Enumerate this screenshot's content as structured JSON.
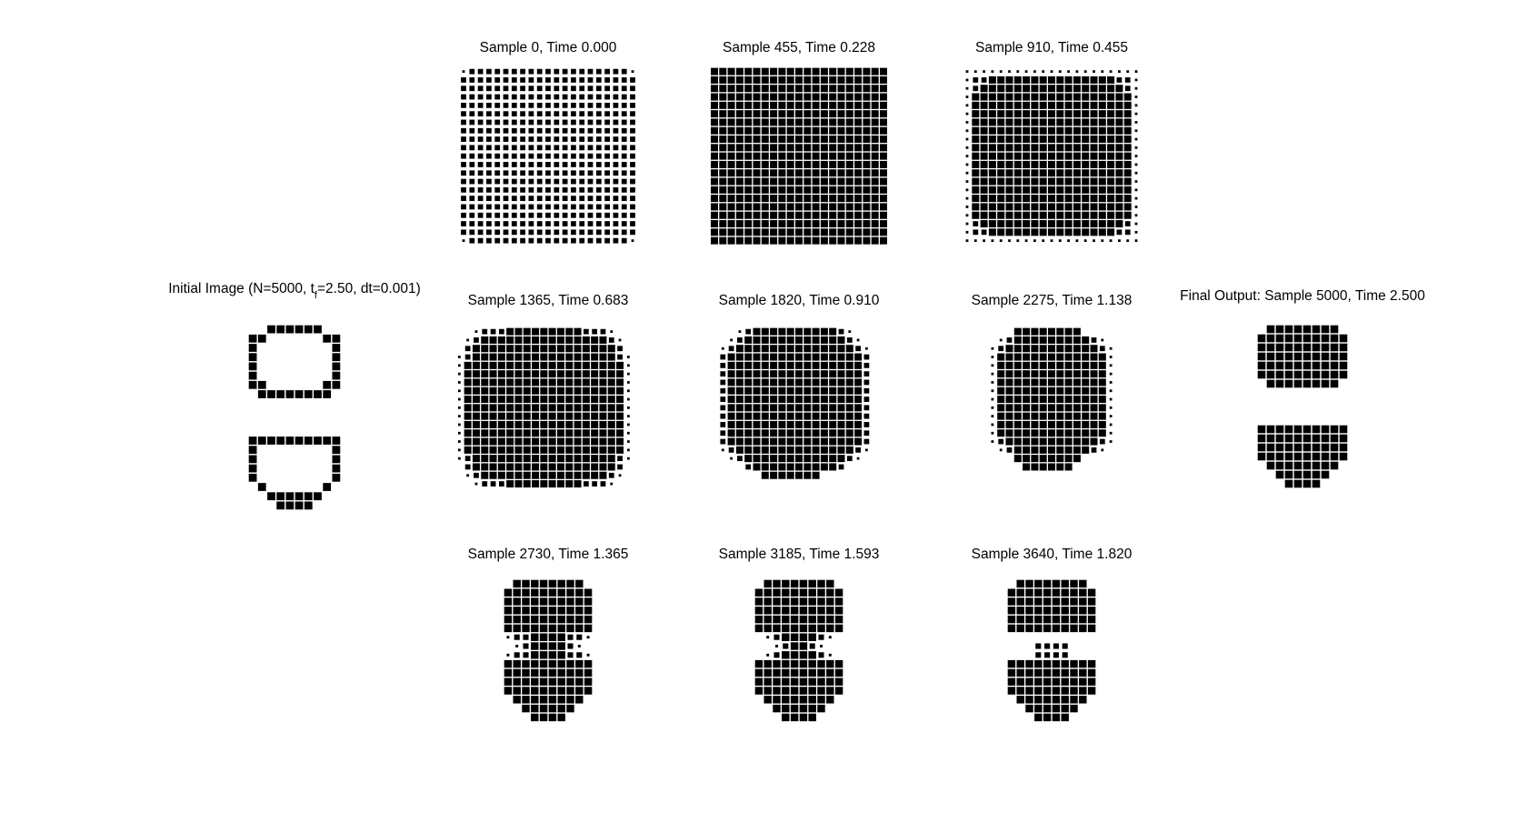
{
  "chart_data": {
    "type": "heatmap",
    "figure_background": "#ffffff",
    "mark_color": "#000000",
    "panels": [
      {
        "id": "p0",
        "title": "Sample 0, Time 0.000",
        "rows": [
          "122222222222222222221",
          "222222222222222222222",
          "222222222222222222222",
          "222222222222222222222",
          "222222222222222222222",
          "222222222222222222222",
          "222222222222222222222",
          "222222222222222222222",
          "222222222222222222222",
          "222222222222222222222",
          "222222222222222222222",
          "222222222222222222222",
          "222222222222222222222",
          "222222222222222222222",
          "222222222222222222222",
          "222222222222222222222",
          "222222222222222222222",
          "222222222222222222222",
          "222222222222222222222",
          "222222222222222222222",
          "122222222222222222221"
        ]
      },
      {
        "id": "p1",
        "title": "Sample 455, Time 0.228",
        "rows": [
          "333333333333333333333",
          "333333333333333333333",
          "333333333333333333333",
          "333333333333333333333",
          "333333333333333333333",
          "333333333333333333333",
          "333333333333333333333",
          "333333333333333333333",
          "333333333333333333333",
          "333333333333333333333",
          "333333333333333333333",
          "333333333333333333333",
          "333333333333333333333",
          "333333333333333333333",
          "333333333333333333333",
          "333333333333333333333",
          "333333333333333333333",
          "333333333333333333333",
          "333333333333333333333",
          "333333333333333333333",
          "333333333333333333333"
        ]
      },
      {
        "id": "p2",
        "title": "Sample 910, Time 0.455",
        "rows": [
          "111111111111111111111",
          "122333333333333333221",
          "123333333333333333321",
          "133333333333333333331",
          "133333333333333333331",
          "133333333333333333331",
          "133333333333333333331",
          "133333333333333333331",
          "133333333333333333331",
          "133333333333333333331",
          "133333333333333333331",
          "133333333333333333331",
          "133333333333333333331",
          "133333333333333333331",
          "133333333333333333331",
          "133333333333333333331",
          "133333333333333333331",
          "133333333333333333331",
          "123333333333333333321",
          "122333333333333333221",
          "111111111111111111111"
        ]
      },
      {
        "id": "p3",
        "title": "Sample 1365, Time 0.683",
        "rows": [
          "0012223333333332221000",
          "0123333333333333332100",
          "0233333333333333333200",
          "1233333333333333333210",
          "1333333333333333333310",
          "1333333333333333333310",
          "1333333333333333333310",
          "1333333333333333333310",
          "1333333333333333333310",
          "1333333333333333333310",
          "1333333333333333333310",
          "1333333333333333333310",
          "1333333333333333333310",
          "1333333333333333333310",
          "1333333333333333333310",
          "1233333333333333333210",
          "0233333333333333333200",
          "0123333333333333332100",
          "0012223333333332221000"
        ]
      },
      {
        "id": "p4",
        "title": "Sample 1820, Time 0.910",
        "rows": [
          "0012333333333321000",
          "0123333333333332100",
          "1233333333333333210",
          "2333333333333333320",
          "2333333333333333320",
          "2333333333333333320",
          "2333333333333333320",
          "2333333333333333320",
          "2333333333333333320",
          "2333333333333333320",
          "2333333333333333320",
          "2333333333333333320",
          "2333333333333333320",
          "2333333333333333320",
          "1233333333333333210",
          "0123333333333332100",
          "0002333333333320000",
          "0000033333330000000"
        ]
      },
      {
        "id": "p5",
        "title": "Sample 2275, Time 1.138",
        "rows": [
          "000333333330000",
          "012333333333210",
          "123333333333321",
          "133333333333331",
          "133333333333331",
          "133333333333331",
          "133333333333331",
          "133333333333331",
          "133333333333331",
          "133333333333331",
          "133333333333331",
          "133333333333331",
          "133333333333331",
          "123333333333321",
          "012333333333210",
          "000333333330000",
          "000033333300000"
        ]
      },
      {
        "id": "p6",
        "title": "Sample 2730, Time 1.365",
        "rows": [
          "0333333330",
          "3333333333",
          "3333333333",
          "3333333333",
          "3333333333",
          "3333333333",
          "1223333221",
          "0123333210",
          "1223333221",
          "3333333333",
          "3333333333",
          "3333333333",
          "3333333333",
          "0333333330",
          "0033333300",
          "0003333000"
        ]
      },
      {
        "id": "p7",
        "title": "Sample 3185, Time 1.593",
        "rows": [
          "0333333330",
          "3333333333",
          "3333333333",
          "3333333333",
          "3333333333",
          "3333333333",
          "0123333210",
          "0012332100",
          "0123333210",
          "3333333333",
          "3333333333",
          "3333333333",
          "3333333333",
          "0333333330",
          "0033333300",
          "0003333000"
        ]
      },
      {
        "id": "p8",
        "title": "Sample 3640, Time 1.820",
        "rows": [
          "0333333330",
          "3333333333",
          "3333333333",
          "3333333333",
          "3333333333",
          "3333333333",
          "0000000000",
          "0002222000",
          "0002222000",
          "3333333333",
          "3333333333",
          "3333333333",
          "3333333333",
          "0333333330",
          "0033333300",
          "0003333000"
        ]
      },
      {
        "id": "initial",
        "title_parts": {
          "before": "Initial Image (N=5000, t",
          "sub": "f",
          "after": "=2.50, dt=0.001)"
        },
        "rows": [
          "0033333300",
          "3300000033",
          "3000000003",
          "3000000003",
          "3000000003",
          "3000000003",
          "3300000033",
          "0333333330",
          "0000000000",
          "0000000000",
          "0000000000",
          "0000000000",
          "3333333333",
          "3000000003",
          "3000000003",
          "3000000003",
          "3000000003",
          "0300000030",
          "0033333300",
          "0003333000"
        ]
      },
      {
        "id": "final",
        "title": "Final Output: Sample 5000, Time 2.500",
        "rows": [
          "0333333330",
          "3333333333",
          "3333333333",
          "3333333333",
          "3333333333",
          "3333333333",
          "0333333330",
          "0000000000",
          "0000000000",
          "0000000000",
          "0000000000",
          "3333333333",
          "3333333333",
          "3333333333",
          "3333333333",
          "0333333330",
          "0033333300",
          "0003333000"
        ]
      }
    ]
  }
}
